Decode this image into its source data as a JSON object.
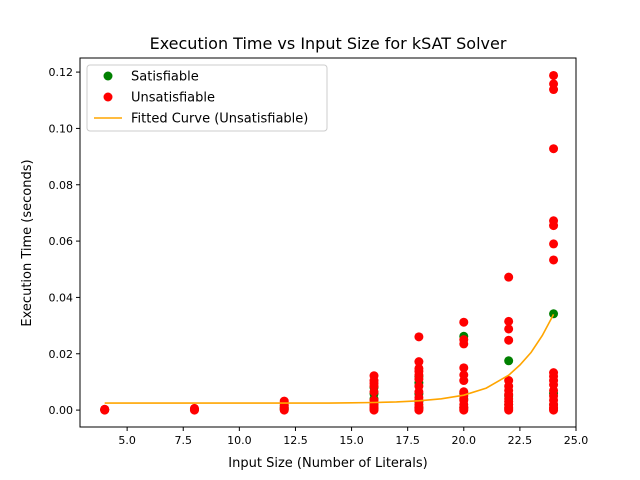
{
  "chart_data": {
    "type": "scatter",
    "title": "Execution Time vs Input Size for kSAT Solver",
    "xlabel": "Input Size (Number of Literals)",
    "ylabel": "Execution Time (seconds)",
    "xlim": [
      2.9,
      25.0
    ],
    "ylim": [
      -0.006,
      0.125
    ],
    "xticks": [
      5.0,
      7.5,
      10.0,
      12.5,
      15.0,
      17.5,
      20.0,
      22.5,
      25.0
    ],
    "xtick_labels": [
      "5.0",
      "7.5",
      "10.0",
      "12.5",
      "15.0",
      "17.5",
      "20.0",
      "22.5",
      "25.0"
    ],
    "yticks": [
      0.0,
      0.02,
      0.04,
      0.06,
      0.08,
      0.1,
      0.12
    ],
    "ytick_labels": [
      "0.00",
      "0.02",
      "0.04",
      "0.06",
      "0.08",
      "0.10",
      "0.12"
    ],
    "grid": false,
    "legend_position": "upper-left",
    "series": [
      {
        "name": "Satisfiable",
        "kind": "scatter",
        "color": "#008000",
        "points": [
          [
            4,
            0.0001
          ],
          [
            4,
            0.0002
          ],
          [
            8,
            0.0002
          ],
          [
            8,
            0.0004
          ],
          [
            12,
            0.0003
          ],
          [
            12,
            0.0008
          ],
          [
            12,
            0.0015
          ],
          [
            16,
            0.0005
          ],
          [
            16,
            0.002
          ],
          [
            16,
            0.004
          ],
          [
            16,
            0.0058
          ],
          [
            16,
            0.008
          ],
          [
            18,
            0.001
          ],
          [
            18,
            0.003
          ],
          [
            18,
            0.0058
          ],
          [
            18,
            0.0097
          ],
          [
            18,
            0.012
          ],
          [
            20,
            0.001
          ],
          [
            20,
            0.004
          ],
          [
            20,
            0.006
          ],
          [
            20,
            0.0262
          ],
          [
            22,
            0.002
          ],
          [
            22,
            0.005
          ],
          [
            22,
            0.0175
          ],
          [
            24,
            0.002
          ],
          [
            24,
            0.006
          ],
          [
            24,
            0.0342
          ]
        ]
      },
      {
        "name": "Unsatisfiable",
        "kind": "scatter",
        "color": "#ff0000",
        "points": [
          [
            4,
            0.0
          ],
          [
            4,
            0.0001
          ],
          [
            4,
            0.0003
          ],
          [
            8,
            0.0
          ],
          [
            8,
            0.0003
          ],
          [
            8,
            0.0006
          ],
          [
            12,
            0.0
          ],
          [
            12,
            0.0005
          ],
          [
            12,
            0.001
          ],
          [
            12,
            0.0018
          ],
          [
            12,
            0.0025
          ],
          [
            12,
            0.0032
          ],
          [
            16,
            0.0
          ],
          [
            16,
            0.0005
          ],
          [
            16,
            0.001
          ],
          [
            16,
            0.0015
          ],
          [
            16,
            0.0025
          ],
          [
            16,
            0.0035
          ],
          [
            16,
            0.0065
          ],
          [
            16,
            0.0085
          ],
          [
            16,
            0.0095
          ],
          [
            16,
            0.0105
          ],
          [
            16,
            0.0122
          ],
          [
            18,
            0.0
          ],
          [
            18,
            0.0005
          ],
          [
            18,
            0.001
          ],
          [
            18,
            0.002
          ],
          [
            18,
            0.0035
          ],
          [
            18,
            0.0045
          ],
          [
            18,
            0.0065
          ],
          [
            18,
            0.0085
          ],
          [
            18,
            0.011
          ],
          [
            18,
            0.0125
          ],
          [
            18,
            0.0138
          ],
          [
            18,
            0.0148
          ],
          [
            18,
            0.0172
          ],
          [
            18,
            0.026
          ],
          [
            20,
            0.0
          ],
          [
            20,
            0.0005
          ],
          [
            20,
            0.001
          ],
          [
            20,
            0.002
          ],
          [
            20,
            0.0035
          ],
          [
            20,
            0.005
          ],
          [
            20,
            0.0065
          ],
          [
            20,
            0.0105
          ],
          [
            20,
            0.0125
          ],
          [
            20,
            0.015
          ],
          [
            20,
            0.0235
          ],
          [
            20,
            0.025
          ],
          [
            20,
            0.0312
          ],
          [
            22,
            0.0
          ],
          [
            22,
            0.0005
          ],
          [
            22,
            0.001
          ],
          [
            22,
            0.002
          ],
          [
            22,
            0.003
          ],
          [
            22,
            0.004
          ],
          [
            22,
            0.0055
          ],
          [
            22,
            0.007
          ],
          [
            22,
            0.0085
          ],
          [
            22,
            0.0105
          ],
          [
            22,
            0.0248
          ],
          [
            22,
            0.0288
          ],
          [
            22,
            0.0315
          ],
          [
            22,
            0.0472
          ],
          [
            24,
            0.0
          ],
          [
            24,
            0.0005
          ],
          [
            24,
            0.001
          ],
          [
            24,
            0.002
          ],
          [
            24,
            0.0035
          ],
          [
            24,
            0.005
          ],
          [
            24,
            0.007
          ],
          [
            24,
            0.009
          ],
          [
            24,
            0.0105
          ],
          [
            24,
            0.012
          ],
          [
            24,
            0.0133
          ],
          [
            24,
            0.0533
          ],
          [
            24,
            0.059
          ],
          [
            24,
            0.0655
          ],
          [
            24,
            0.0672
          ],
          [
            24,
            0.0928
          ],
          [
            24,
            0.1138
          ],
          [
            24,
            0.1158
          ],
          [
            24,
            0.1188
          ]
        ]
      },
      {
        "name": "Fitted Curve (Unsatisfiable)",
        "kind": "line",
        "color": "#ffa500",
        "x": [
          4,
          6,
          8,
          10,
          12,
          13,
          14,
          15,
          16,
          17,
          18,
          19,
          20,
          21,
          22,
          22.5,
          23,
          23.5,
          24
        ],
        "y": [
          0.0025,
          0.0025,
          0.0025,
          0.0025,
          0.0025,
          0.0025,
          0.0025,
          0.0026,
          0.0027,
          0.0029,
          0.0033,
          0.004,
          0.0053,
          0.0078,
          0.0124,
          0.016,
          0.0205,
          0.0265,
          0.034
        ]
      }
    ]
  }
}
